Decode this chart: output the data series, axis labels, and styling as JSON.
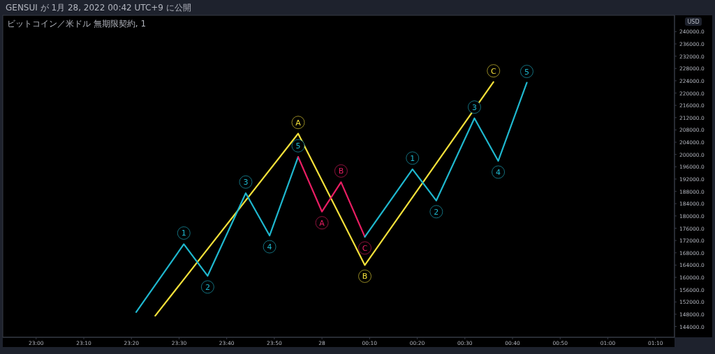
{
  "chart_data": {
    "type": "line",
    "title": "ビットコイン／米ドル 無期限契約, 1",
    "ylabel": "USD",
    "annotations": [
      "GENSUI が 1月 28, 2022 00:42 UTC+9 に公開",
      {
        "text": "A",
        "x": "2022-01-27T23:55",
        "y": 206800
      },
      {
        "text": "B",
        "x": "2022-01-28T00:09",
        "y": 164000
      },
      {
        "text": "C",
        "x": "2022-01-28T00:36",
        "y": 223600
      },
      {
        "text": "1",
        "x": "2022-01-27T23:31",
        "y": 170800
      },
      {
        "text": "2",
        "x": "2022-01-27T23:36",
        "y": 160500
      },
      {
        "text": "3",
        "x": "2022-01-27T23:44",
        "y": 187400
      },
      {
        "text": "4",
        "x": "2022-01-27T23:49",
        "y": 173600
      },
      {
        "text": "5",
        "x": "2022-01-27T23:55",
        "y": 199200
      },
      {
        "text": "A",
        "x": "2022-01-28T00:00",
        "y": 181400
      },
      {
        "text": "B",
        "x": "2022-01-28T00:04",
        "y": 191000
      },
      {
        "text": "C",
        "x": "2022-01-28T00:09",
        "y": 173200
      },
      {
        "text": "1",
        "x": "2022-01-28T00:19",
        "y": 195200
      },
      {
        "text": "2",
        "x": "2022-01-28T00:24",
        "y": 185000
      },
      {
        "text": "3",
        "x": "2022-01-28T00:32",
        "y": 211800
      },
      {
        "text": "4",
        "x": "2022-01-28T00:37",
        "y": 197900
      },
      {
        "text": "5",
        "x": "2022-01-28T00:43",
        "y": 223400
      }
    ],
    "xlim": [
      "2022-01-27T22:53",
      "2022-01-28T01:14"
    ],
    "ylim": [
      140500,
      245300
    ],
    "xticks": [
      {
        "value": "2022-01-27T23:00",
        "label": "23:00"
      },
      {
        "value": "2022-01-27T23:10",
        "label": "23:10"
      },
      {
        "value": "2022-01-27T23:20",
        "label": "23:20"
      },
      {
        "value": "2022-01-27T23:30",
        "label": "23:30"
      },
      {
        "value": "2022-01-27T23:40",
        "label": "23:40"
      },
      {
        "value": "2022-01-27T23:50",
        "label": "23:50"
      },
      {
        "value": "2022-01-28T00:00",
        "label": "28"
      },
      {
        "value": "2022-01-28T00:10",
        "label": "00:10"
      },
      {
        "value": "2022-01-28T00:20",
        "label": "00:20"
      },
      {
        "value": "2022-01-28T00:30",
        "label": "00:30"
      },
      {
        "value": "2022-01-28T00:40",
        "label": "00:40"
      },
      {
        "value": "2022-01-28T00:50",
        "label": "00:50"
      },
      {
        "value": "2022-01-28T01:00",
        "label": "01:00"
      },
      {
        "value": "2022-01-28T01:10",
        "label": "01:10"
      }
    ],
    "yticks": [
      {
        "value": 144000,
        "label": "144000.0"
      },
      {
        "value": 148000,
        "label": "148000.0"
      },
      {
        "value": 152000,
        "label": "152000.0"
      },
      {
        "value": 156000,
        "label": "156000.0"
      },
      {
        "value": 160000,
        "label": "160000.0"
      },
      {
        "value": 164000,
        "label": "164000.0"
      },
      {
        "value": 168000,
        "label": "168000.0"
      },
      {
        "value": 172000,
        "label": "172000.0"
      },
      {
        "value": 176000,
        "label": "176000.0"
      },
      {
        "value": 180000,
        "label": "180000.0"
      },
      {
        "value": 184000,
        "label": "184000.0"
      },
      {
        "value": 188000,
        "label": "188000.0"
      },
      {
        "value": 192000,
        "label": "192000.0"
      },
      {
        "value": 196000,
        "label": "196000.0"
      },
      {
        "value": 200000,
        "label": "200000.0"
      },
      {
        "value": 204000,
        "label": "204000.0"
      },
      {
        "value": 208000,
        "label": "208000.0"
      },
      {
        "value": 212000,
        "label": "212000.0"
      },
      {
        "value": 216000,
        "label": "216000.0"
      },
      {
        "value": 220000,
        "label": "220000.0"
      },
      {
        "value": 224000,
        "label": "224000.0"
      },
      {
        "value": 228000,
        "label": "228000.0"
      },
      {
        "value": 232000,
        "label": "232000.0"
      },
      {
        "value": 236000,
        "label": "236000.0"
      },
      {
        "value": 240000,
        "label": "240000.0"
      }
    ],
    "series": [
      {
        "color": "#f5e13a",
        "x": [
          "2022-01-27T23:25",
          "2022-01-27T23:55",
          "2022-01-28T00:09",
          "2022-01-28T00:36"
        ],
        "values": [
          147500,
          206800,
          164000,
          223600
        ]
      },
      {
        "color": "#1fb8cf",
        "x": [
          "2022-01-27T23:21",
          "2022-01-27T23:31",
          "2022-01-27T23:36",
          "2022-01-27T23:44",
          "2022-01-27T23:49",
          "2022-01-27T23:55"
        ],
        "values": [
          148700,
          170800,
          160500,
          187400,
          173600,
          199200
        ]
      },
      {
        "color": "#e91e63",
        "x": [
          "2022-01-27T23:55",
          "2022-01-28T00:00",
          "2022-01-28T00:04",
          "2022-01-28T00:09"
        ],
        "values": [
          199200,
          181400,
          191000,
          173200
        ]
      },
      {
        "color": "#1fb8cf",
        "x": [
          "2022-01-28T00:09",
          "2022-01-28T00:19",
          "2022-01-28T00:24",
          "2022-01-28T00:32",
          "2022-01-28T00:37",
          "2022-01-28T00:43"
        ],
        "values": [
          173200,
          195200,
          185000,
          211800,
          197900,
          223400
        ]
      }
    ]
  }
}
